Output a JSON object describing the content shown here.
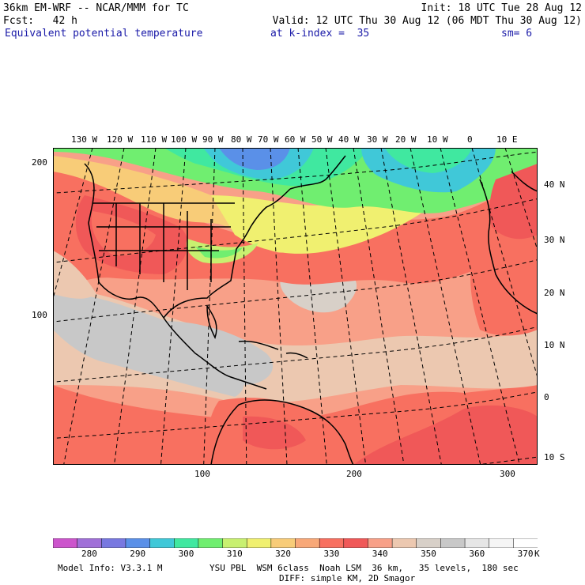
{
  "header": {
    "line1_left": "36km EM-WRF -- NCAR/MMM for TC",
    "line1_right": "Init: 18 UTC Tue 28 Aug 12",
    "line2_left": "Fcst:   42 h",
    "line2_right": "Valid: 12 UTC Thu 30 Aug 12 (06 MDT Thu 30 Aug 12)",
    "field_name": "Equivalent potential temperature",
    "level": "at k-index =  35",
    "smoothing": "sm= 6"
  },
  "top_lon_labels": [
    "130 W",
    "120 W",
    "110 W",
    "100 W",
    "90 W",
    "80 W",
    "70 W",
    "60 W",
    "50 W",
    "40 W",
    "30 W",
    "20 W",
    "10 W",
    "0",
    "10 E"
  ],
  "right_lat_labels": [
    "40 N",
    "30 N",
    "20 N",
    "10 N",
    "0",
    "10 S"
  ],
  "left_grid_labels": [
    "200",
    "100"
  ],
  "bottom_grid_labels": [
    "100",
    "200",
    "300"
  ],
  "colorbar": {
    "labels": [
      "280",
      "290",
      "300",
      "310",
      "320",
      "330",
      "340",
      "350",
      "360",
      "370"
    ],
    "unit": "K",
    "colors": [
      "#cc55cc",
      "#a070d8",
      "#7878e0",
      "#5a90e8",
      "#40c8d8",
      "#40e8a0",
      "#70ee70",
      "#c8f070",
      "#f0f070",
      "#f8cc78",
      "#f8a878",
      "#f87060",
      "#f05858",
      "#f8a088",
      "#ecc8b0",
      "#d8d0c8",
      "#c8c8c8",
      "#e6e6e6",
      "#f5f5f5",
      "#ffffff"
    ]
  },
  "footer": {
    "model_info": "Model Info: V3.3.1 M",
    "physics": "YSU PBL  WSM 6class  Noah LSM  36 km,   35 levels,  180 sec",
    "diff": "DIFF: simple KM, 2D Smagor"
  }
}
